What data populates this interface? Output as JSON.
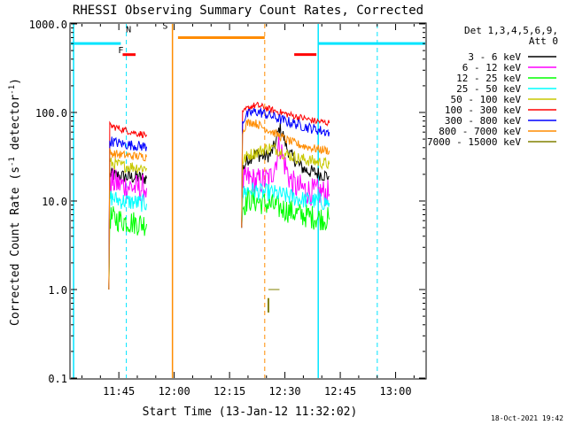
{
  "chart_data": {
    "type": "line",
    "title": "RHESSI Observing Summary Count Rates, Corrected",
    "xlabel": "Start Time (13-Jan-12 11:32:02)",
    "ylabel_main": "Corrected Count Rate (s",
    "ylabel_sup": "-1",
    "ylabel_mid": " detector",
    "ylabel_sup2": "-1",
    "ylabel_end": ")",
    "yscale": "log",
    "ylim": [
      0.1,
      1000.0
    ],
    "xlim_minutes": [
      -0.03,
      96.0
    ],
    "xticks": [
      {
        "label": "11:45",
        "minute": 12.97
      },
      {
        "label": "12:00",
        "minute": 27.97
      },
      {
        "label": "12:15",
        "minute": 42.97
      },
      {
        "label": "12:30",
        "minute": 57.97
      },
      {
        "label": "12:45",
        "minute": 72.97
      },
      {
        "label": "13:00",
        "minute": 87.97
      }
    ],
    "yticks": [
      {
        "label": "1000.0",
        "value": 1000.0
      },
      {
        "label": "100.0",
        "value": 100.0
      },
      {
        "label": "10.0",
        "value": 10.0
      },
      {
        "label": "1.0",
        "value": 1.0
      },
      {
        "label": "0.1",
        "value": 0.1
      }
    ],
    "legend": {
      "header1": "Det 1,3,4,5,6,9,",
      "header2": "Att 0",
      "placement": "right"
    },
    "series": [
      {
        "name": "3 - 6 keV",
        "color": "#000000",
        "segments": [
          {
            "t": [
              10.5,
              12,
              14,
              16,
              18,
              20.5
            ],
            "v": [
              20,
              19.5,
              19,
              18.5,
              18.5,
              18
            ]
          },
          {
            "t": [
              46.5,
              48,
              50,
              52,
              54,
              55.5,
              56.5,
              57.5,
              58.5,
              59.5,
              60.5,
              61.5,
              62.5,
              64,
              66,
              68,
              70
            ],
            "v": [
              23,
              30,
              34,
              32,
              33,
              45,
              68,
              55,
              40,
              33,
              30,
              26,
              24,
              22,
              21,
              20,
              19
            ]
          }
        ]
      },
      {
        "name": "6 - 12 keV",
        "color": "#ff00ff",
        "segments": [
          {
            "t": [
              10.5,
              12,
              14,
              16,
              18,
              20.5
            ],
            "v": [
              17,
              16,
              15,
              14.5,
              14,
              14
            ]
          },
          {
            "t": [
              46.5,
              48,
              50,
              52,
              54,
              55.5,
              56.5,
              57.5,
              58.5,
              59.5,
              60.5,
              61.5,
              62.5,
              64,
              66,
              68,
              70
            ],
            "v": [
              16,
              18,
              16.5,
              17,
              18,
              28,
              45,
              30,
              22,
              17,
              15,
              14,
              14,
              13,
              12.5,
              12.5,
              12
            ]
          }
        ]
      },
      {
        "name": "12 - 25 keV",
        "color": "#00ff00",
        "segments": [
          {
            "t": [
              10.5,
              12,
              14,
              16,
              18,
              20.5
            ],
            "v": [
              6.5,
              6.3,
              6.0,
              5.8,
              5.6,
              5.5
            ]
          },
          {
            "t": [
              46.5,
              48,
              50,
              52,
              54,
              56,
              58,
              60,
              62,
              64,
              66,
              68,
              70
            ],
            "v": [
              8.5,
              10.5,
              10,
              9.5,
              9,
              8.5,
              8,
              7.5,
              7,
              6.8,
              6.5,
              6.4,
              6.2
            ]
          }
        ]
      },
      {
        "name": "25 - 50 keV",
        "color": "#00ffff",
        "segments": [
          {
            "t": [
              10.5,
              12,
              14,
              16,
              18,
              20.5
            ],
            "v": [
              11,
              10.5,
              10,
              9.8,
              9.5,
              9.3
            ]
          },
          {
            "t": [
              46.5,
              48,
              50,
              52,
              54,
              56,
              58,
              60,
              62,
              64,
              66,
              68,
              70
            ],
            "v": [
              12,
              13.5,
              13,
              12.5,
              12.5,
              12,
              11.5,
              11,
              10.5,
              10.2,
              10,
              9.8,
              9.5
            ]
          }
        ]
      },
      {
        "name": "50 - 100 keV",
        "color": "#c8c800",
        "segments": [
          {
            "t": [
              10.5,
              12,
              14,
              16,
              18,
              20.5
            ],
            "v": [
              27,
              26,
              25,
              24.5,
              24,
              23.5
            ]
          },
          {
            "t": [
              46.5,
              48,
              50,
              52,
              54,
              56,
              58,
              60,
              62,
              64,
              66,
              68,
              70
            ],
            "v": [
              28,
              33,
              35,
              38,
              40,
              38,
              34,
              32,
              30,
              29,
              28,
              27,
              26
            ]
          }
        ]
      },
      {
        "name": "100 - 300 keV",
        "color": "#ff0000",
        "segments": [
          {
            "t": [
              10.5,
              12,
              14,
              16,
              18,
              20.5
            ],
            "v": [
              71,
              68,
              64,
              61,
              58,
              56
            ]
          },
          {
            "t": [
              46.5,
              47.5,
              49,
              50.5,
              52,
              54,
              56,
              58,
              60,
              62,
              64,
              66,
              68,
              70
            ],
            "v": [
              95,
              108,
              118,
              120,
              115,
              108,
              102,
              97,
              92,
              88,
              84,
              80,
              78,
              76
            ]
          }
        ]
      },
      {
        "name": "300 - 800 keV",
        "color": "#0000ff",
        "segments": [
          {
            "t": [
              10.5,
              12,
              14,
              16,
              18,
              20.5
            ],
            "v": [
              48,
              46,
              44,
              43,
              42,
              41
            ]
          },
          {
            "t": [
              46.5,
              47.5,
              49,
              50.5,
              52,
              54,
              56,
              58,
              60,
              62,
              64,
              66,
              68,
              70
            ],
            "v": [
              80,
              92,
              100,
              102,
              98,
              92,
              86,
              80,
              76,
              72,
              68,
              65,
              62,
              60
            ]
          }
        ]
      },
      {
        "name": "800 - 7000 keV",
        "color": "#ff8c00",
        "segments": [
          {
            "t": [
              10.5,
              12,
              14,
              16,
              18,
              20.5
            ],
            "v": [
              35,
              34,
              33,
              32.5,
              32,
              31.5
            ]
          },
          {
            "t": [
              46.5,
              47.5,
              49,
              50.5,
              52,
              54,
              56,
              58,
              60,
              62,
              64,
              66,
              68,
              70
            ],
            "v": [
              60,
              75,
              78,
              74,
              68,
              62,
              56,
              50,
              46,
              43,
              41,
              39,
              38,
              37
            ]
          }
        ]
      },
      {
        "name": "7000 - 15000 keV",
        "color": "#808000",
        "segments": []
      }
    ],
    "markers": {
      "saa_bars": [
        {
          "t0": -0.03,
          "t1": 13.5,
          "v": 600
        },
        {
          "t0": 67.0,
          "t1": 96.0,
          "v": 600
        }
      ],
      "flare_bar": {
        "t0": 14.0,
        "t1": 17.5,
        "v": 450
      },
      "flare_bar2": {
        "t0": 60.5,
        "t1": 66.5,
        "v": 450
      },
      "night_bar": {
        "t0": 29.0,
        "t1": 52.5,
        "v": 700
      },
      "cyan_solid_lines": [
        0.7,
        67.0
      ],
      "cyan_dashed_lines": [
        15.0,
        83.0
      ],
      "orange_solid_lines": [
        27.5
      ],
      "orange_dashed_lines": [
        52.5
      ],
      "marker_F": {
        "label": "F",
        "t": 13.5,
        "v": 470
      },
      "marker_N": {
        "label": "N",
        "t": 15.6,
        "v": 800
      },
      "marker_S": {
        "label": "S",
        "t": 25.5,
        "v": 880
      },
      "olive_fragment": {
        "t0": 53.5,
        "t1": 56.5,
        "v": 1.0
      }
    },
    "footer": "18-Oct-2021 19:42"
  }
}
